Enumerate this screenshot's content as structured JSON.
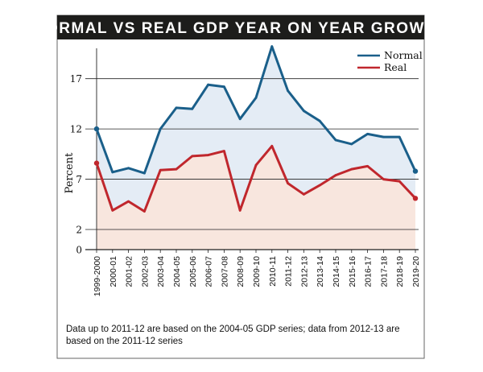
{
  "chart_data": {
    "type": "line",
    "title": "NORMAL VS REAL GDP YEAR ON YEAR GROWTH",
    "ylabel": "Percent",
    "xlabel": "",
    "ylim": [
      0,
      20.5
    ],
    "yticks": [
      0,
      2,
      7,
      12,
      17
    ],
    "categories": [
      "1999-2000",
      "2000-01",
      "2001-02",
      "2002-03",
      "2003-04",
      "2004-05",
      "2005-06",
      "2006-07",
      "2007-08",
      "2008-09",
      "2009-10",
      "2010-11",
      "2011-12",
      "2012-13",
      "2013-14",
      "2014-15",
      "2015-16",
      "2016-17",
      "2017-18",
      "2018-19",
      "2019-20"
    ],
    "series": [
      {
        "name": "Normal",
        "color": "#1a5f8a",
        "values": [
          12,
          7.7,
          8.1,
          7.6,
          12,
          14.1,
          14,
          16.4,
          16.2,
          13,
          15.1,
          20.2,
          15.8,
          13.8,
          12.8,
          10.9,
          10.5,
          11.5,
          11.2,
          11.2,
          7.8
        ]
      },
      {
        "name": "Real",
        "color": "#c0272d",
        "values": [
          8.6,
          3.9,
          4.8,
          3.8,
          7.9,
          8,
          9.3,
          9.4,
          9.8,
          3.9,
          8.4,
          10.3,
          6.6,
          5.5,
          6.4,
          7.4,
          8,
          8.3,
          7,
          6.8,
          5.1
        ]
      }
    ],
    "grid": "horizontal",
    "legend": "top-right",
    "fill_colors": {
      "normal_band": "#e4ecf5",
      "real_band": "#f8e6de"
    },
    "footnote": "Data up to 2011-12 are based on the 2004-05 GDP series; data from 2012-13 are based on the 2011-12 series"
  }
}
